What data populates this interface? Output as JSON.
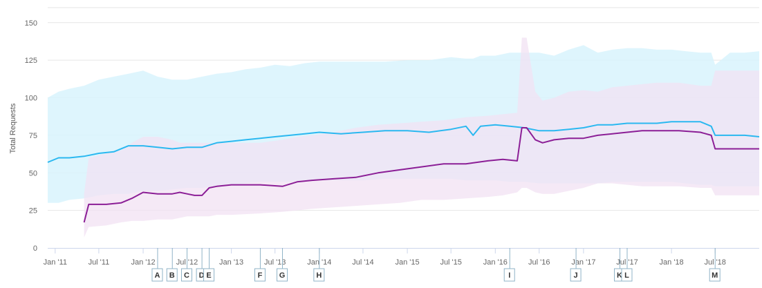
{
  "chart_data": {
    "type": "line",
    "title": "",
    "xlabel": "",
    "ylabel": "Total Requests",
    "ylim": [
      0,
      160
    ],
    "xlim": [
      "2010-12-01",
      "2018-12-31"
    ],
    "yticks": [
      0,
      25,
      50,
      75,
      100,
      125,
      150
    ],
    "xticks": [
      {
        "label": "Jan '11",
        "date": "2011-01-01"
      },
      {
        "label": "Jul '11",
        "date": "2011-07-01"
      },
      {
        "label": "Jan '12",
        "date": "2012-01-01"
      },
      {
        "label": "Jul '12",
        "date": "2012-07-01"
      },
      {
        "label": "Jan '13",
        "date": "2013-01-01"
      },
      {
        "label": "Jul '13",
        "date": "2013-07-01"
      },
      {
        "label": "Jan '14",
        "date": "2014-01-01"
      },
      {
        "label": "Jul '14",
        "date": "2014-07-01"
      },
      {
        "label": "Jan '15",
        "date": "2015-01-01"
      },
      {
        "label": "Jul '15",
        "date": "2015-07-01"
      },
      {
        "label": "Jan '16",
        "date": "2016-01-01"
      },
      {
        "label": "Jul '16",
        "date": "2016-07-01"
      },
      {
        "label": "Jan '17",
        "date": "2017-01-01"
      },
      {
        "label": "Jul '17",
        "date": "2017-07-01"
      },
      {
        "label": "Jan '18",
        "date": "2018-01-01"
      },
      {
        "label": "Jul '18",
        "date": "2018-07-01"
      }
    ],
    "grid": true,
    "series": [
      {
        "color": "#2ab8f0",
        "band_color": "#d8f3fd",
        "x": [
          "2010-12-01",
          "2011-01-15",
          "2011-03-01",
          "2011-05-01",
          "2011-07-01",
          "2011-09-01",
          "2011-11-01",
          "2012-01-01",
          "2012-03-01",
          "2012-05-01",
          "2012-07-01",
          "2012-09-01",
          "2012-11-01",
          "2013-01-01",
          "2013-03-01",
          "2013-05-01",
          "2013-07-01",
          "2013-09-01",
          "2013-11-01",
          "2014-01-01",
          "2014-04-01",
          "2014-07-01",
          "2014-10-01",
          "2015-01-01",
          "2015-04-01",
          "2015-07-01",
          "2015-09-01",
          "2015-10-01",
          "2015-11-01",
          "2016-01-01",
          "2016-03-01",
          "2016-05-01",
          "2016-07-01",
          "2016-09-01",
          "2016-11-01",
          "2017-01-01",
          "2017-03-01",
          "2017-05-01",
          "2017-07-01",
          "2017-09-01",
          "2017-11-01",
          "2018-01-01",
          "2018-03-01",
          "2018-05-01",
          "2018-06-15",
          "2018-07-01",
          "2018-09-01",
          "2018-11-01",
          "2018-12-31"
        ],
        "y": [
          57,
          60,
          60,
          61,
          63,
          64,
          68,
          68,
          67,
          66,
          67,
          67,
          70,
          71,
          72,
          73,
          74,
          75,
          76,
          77,
          76,
          77,
          78,
          78,
          77,
          79,
          81,
          75,
          81,
          82,
          81,
          80,
          78,
          78,
          79,
          80,
          82,
          82,
          83,
          83,
          83,
          84,
          84,
          84,
          81,
          75,
          75,
          75,
          74
        ],
        "band_low": [
          30,
          30,
          32,
          33,
          35,
          36,
          36,
          38,
          38,
          39,
          40,
          40,
          41,
          42,
          43,
          44,
          44,
          44,
          45,
          45,
          45,
          45,
          46,
          46,
          46,
          46,
          45,
          45,
          45,
          45,
          44,
          44,
          43,
          43,
          43,
          43,
          43,
          44,
          44,
          44,
          44,
          44,
          43,
          42,
          42,
          41,
          41,
          41,
          41
        ],
        "band_high": [
          100,
          104,
          106,
          108,
          112,
          114,
          116,
          118,
          114,
          112,
          112,
          114,
          116,
          117,
          119,
          120,
          122,
          121,
          123,
          124,
          124,
          124,
          124,
          125,
          125,
          127,
          126,
          126,
          128,
          128,
          130,
          130,
          130,
          128,
          132,
          135,
          130,
          132,
          133,
          133,
          132,
          132,
          131,
          130,
          130,
          122,
          130,
          130,
          131
        ]
      },
      {
        "color": "#8b1e96",
        "band_color": "#f2e2f3",
        "x": [
          "2011-05-01",
          "2011-05-20",
          "2011-08-01",
          "2011-10-01",
          "2011-11-15",
          "2012-01-01",
          "2012-03-01",
          "2012-05-01",
          "2012-06-01",
          "2012-07-01",
          "2012-08-01",
          "2012-09-01",
          "2012-10-01",
          "2012-11-01",
          "2013-01-01",
          "2013-05-01",
          "2013-08-01",
          "2013-10-01",
          "2013-12-01",
          "2014-03-01",
          "2014-06-01",
          "2014-09-01",
          "2014-12-01",
          "2015-03-01",
          "2015-06-01",
          "2015-09-01",
          "2015-12-01",
          "2016-02-01",
          "2016-04-01",
          "2016-04-20",
          "2016-05-10",
          "2016-06-15",
          "2016-07-15",
          "2016-09-01",
          "2016-11-01",
          "2017-01-01",
          "2017-03-01",
          "2017-05-01",
          "2017-07-01",
          "2017-09-01",
          "2017-11-01",
          "2018-02-01",
          "2018-05-01",
          "2018-06-15",
          "2018-07-01",
          "2018-09-01",
          "2018-11-01",
          "2018-12-31"
        ],
        "y": [
          17,
          29,
          29,
          30,
          33,
          37,
          36,
          36,
          37,
          36,
          35,
          35,
          40,
          41,
          42,
          42,
          41,
          44,
          45,
          46,
          47,
          50,
          52,
          54,
          56,
          56,
          58,
          59,
          58,
          80,
          80,
          72,
          70,
          72,
          73,
          73,
          75,
          76,
          77,
          78,
          78,
          78,
          77,
          75,
          66,
          66,
          66,
          66
        ],
        "band_low": [
          7,
          14,
          15,
          17,
          18,
          18,
          19,
          19,
          20,
          21,
          21,
          21,
          21,
          22,
          22,
          23,
          24,
          25,
          26,
          27,
          28,
          29,
          30,
          32,
          32,
          33,
          34,
          35,
          37,
          40,
          40,
          37,
          36,
          36,
          38,
          40,
          43,
          43,
          42,
          41,
          41,
          41,
          40,
          40,
          35,
          35,
          35,
          35
        ],
        "band_high": [
          36,
          60,
          63,
          65,
          70,
          74,
          74,
          72,
          70,
          70,
          70,
          70,
          70,
          70,
          70,
          70,
          72,
          74,
          75,
          77,
          80,
          82,
          83,
          84,
          85,
          87,
          88,
          89,
          90,
          140,
          140,
          104,
          98,
          100,
          104,
          105,
          104,
          107,
          108,
          109,
          110,
          110,
          108,
          108,
          118,
          118,
          118,
          118
        ]
      }
    ],
    "annotations": [
      {
        "label": "A",
        "date": "2012-03-01"
      },
      {
        "label": "B",
        "date": "2012-05-01"
      },
      {
        "label": "C",
        "date": "2012-07-01"
      },
      {
        "label": "D",
        "date": "2012-09-01"
      },
      {
        "label": "E",
        "date": "2012-10-01"
      },
      {
        "label": "F",
        "date": "2013-05-01"
      },
      {
        "label": "G",
        "date": "2013-08-01"
      },
      {
        "label": "H",
        "date": "2014-01-01"
      },
      {
        "label": "I",
        "date": "2016-03-01"
      },
      {
        "label": "J",
        "date": "2016-12-01"
      },
      {
        "label": "K",
        "date": "2017-06-01"
      },
      {
        "label": "L",
        "date": "2017-07-01"
      },
      {
        "label": "M",
        "date": "2018-07-01"
      }
    ]
  }
}
